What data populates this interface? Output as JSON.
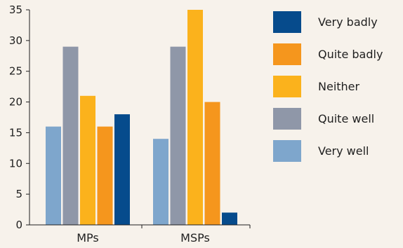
{
  "chart_data": {
    "type": "bar",
    "title": "",
    "xlabel": "",
    "ylabel": "",
    "categories": [
      "MPs",
      "MSPs"
    ],
    "ylim": [
      0,
      35
    ],
    "yticks": [
      0,
      5,
      10,
      15,
      20,
      25,
      30,
      35
    ],
    "grid": false,
    "legend_position": "right",
    "series": [
      {
        "name": "Very well",
        "color": "#7ea6cc",
        "values": [
          16,
          14
        ]
      },
      {
        "name": "Quite well",
        "color": "#8f97a8",
        "values": [
          29,
          29
        ]
      },
      {
        "name": "Neither",
        "color": "#fbb21c",
        "values": [
          21,
          35
        ]
      },
      {
        "name": "Quite badly",
        "color": "#f5961d",
        "values": [
          16,
          20
        ]
      },
      {
        "name": "Very badly",
        "color": "#064b8c",
        "values": [
          18,
          2
        ]
      }
    ],
    "legend_order": [
      "Very badly",
      "Quite badly",
      "Neither",
      "Quite well",
      "Very well"
    ]
  }
}
